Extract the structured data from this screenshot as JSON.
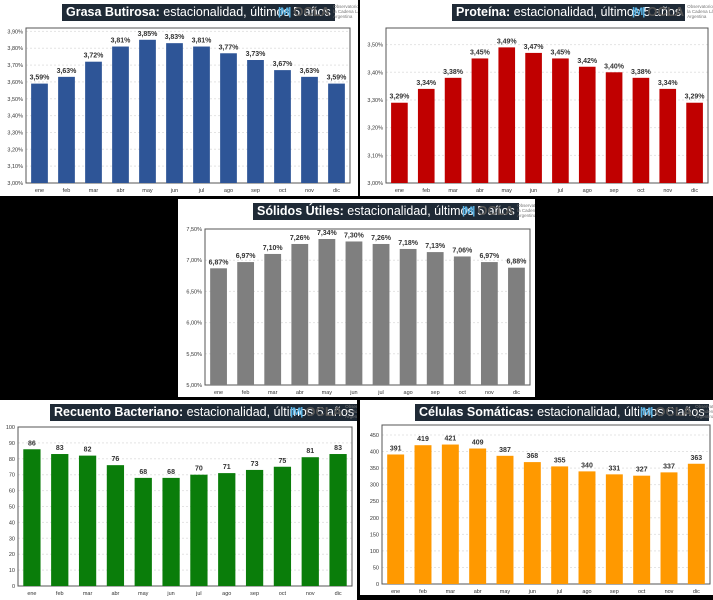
{
  "logo": {
    "word": "OCLA",
    "sub": "Observatorio de la Cadena Láctea Argentina"
  },
  "chart_data": [
    {
      "type": "bar",
      "title_bold": "Grasa Butirosa:",
      "title_rest": " estacionalidad, últimos 5 años",
      "color": "#2e5597",
      "categories": [
        "ene",
        "feb",
        "mar",
        "abr",
        "may",
        "jun",
        "jul",
        "ago",
        "sep",
        "oct",
        "nov",
        "dic"
      ],
      "values": [
        3.59,
        3.63,
        3.72,
        3.81,
        3.85,
        3.83,
        3.81,
        3.77,
        3.73,
        3.67,
        3.63,
        3.59
      ],
      "value_labels": [
        "3,59%",
        "3,63%",
        "3,72%",
        "3,81%",
        "3,85%",
        "3,83%",
        "3,81%",
        "3,77%",
        "3,73%",
        "3,67%",
        "3,63%",
        "3,59%"
      ],
      "ylim": [
        3.0,
        3.92
      ],
      "yticks": [
        3.0,
        3.1,
        3.2,
        3.3,
        3.4,
        3.5,
        3.6,
        3.7,
        3.8,
        3.9
      ],
      "ytick_labels": [
        "3,00%",
        "3,10%",
        "3,20%",
        "3,30%",
        "3,40%",
        "3,50%",
        "3,60%",
        "3,70%",
        "3,80%",
        "3,90%"
      ],
      "grid": true,
      "legend": "none"
    },
    {
      "type": "bar",
      "title_bold": "Proteína:",
      "title_rest": " estacionalidad, últimos 5 años",
      "color": "#c00000",
      "categories": [
        "ene",
        "feb",
        "mar",
        "abr",
        "may",
        "jun",
        "jul",
        "ago",
        "sep",
        "oct",
        "nov",
        "dic"
      ],
      "values": [
        3.29,
        3.34,
        3.38,
        3.45,
        3.49,
        3.47,
        3.45,
        3.42,
        3.4,
        3.38,
        3.34,
        3.29
      ],
      "value_labels": [
        "3,29%",
        "3,34%",
        "3,38%",
        "3,45%",
        "3,49%",
        "3,47%",
        "3,45%",
        "3,42%",
        "3,40%",
        "3,38%",
        "3,34%",
        "3,29%"
      ],
      "ylim": [
        3.0,
        3.56
      ],
      "yticks": [
        3.0,
        3.1,
        3.2,
        3.3,
        3.4,
        3.5
      ],
      "ytick_labels": [
        "3,00%",
        "3,10%",
        "3,20%",
        "3,30%",
        "3,40%",
        "3,50%"
      ],
      "grid": true,
      "legend": "none"
    },
    {
      "type": "bar",
      "title_bold": "Sólidos Útiles:",
      "title_rest": " estacionalidad, últimos 5 años",
      "color": "#7f7f7f",
      "categories": [
        "ene",
        "feb",
        "mar",
        "abr",
        "may",
        "jun",
        "jul",
        "ago",
        "sep",
        "oct",
        "nov",
        "dic"
      ],
      "values": [
        6.87,
        6.97,
        7.1,
        7.26,
        7.34,
        7.3,
        7.26,
        7.18,
        7.13,
        7.06,
        6.97,
        6.88
      ],
      "value_labels": [
        "6,87%",
        "6,97%",
        "7,10%",
        "7,26%",
        "7,34%",
        "7,30%",
        "7,26%",
        "7,18%",
        "7,13%",
        "7,06%",
        "6,97%",
        "6,88%"
      ],
      "ylim": [
        5.0,
        7.5
      ],
      "yticks": [
        5.0,
        5.5,
        6.0,
        6.5,
        7.0,
        7.5
      ],
      "ytick_labels": [
        "5,00%",
        "5,50%",
        "6,00%",
        "6,50%",
        "7,00%",
        "7,50%"
      ],
      "grid": true,
      "legend": "none"
    },
    {
      "type": "bar",
      "title_bold": "Recuento Bacteriano:",
      "title_rest": " estacionalidad, últimos 5 años",
      "color": "#0a7d0a",
      "categories": [
        "ene",
        "feb",
        "mar",
        "abr",
        "may",
        "jun",
        "jul",
        "ago",
        "sep",
        "oct",
        "nov",
        "dic"
      ],
      "values": [
        86,
        83,
        82,
        76,
        68,
        68,
        70,
        71,
        73,
        75,
        81,
        83
      ],
      "value_labels": [
        "86",
        "83",
        "82",
        "76",
        "68",
        "68",
        "70",
        "71",
        "73",
        "75",
        "81",
        "83"
      ],
      "ylim": [
        0,
        100
      ],
      "yticks": [
        0,
        10,
        20,
        30,
        40,
        50,
        60,
        70,
        80,
        90,
        100
      ],
      "ytick_labels": [
        "0",
        "10",
        "20",
        "30",
        "40",
        "50",
        "60",
        "70",
        "80",
        "90",
        "100"
      ],
      "grid": true,
      "legend": "none"
    },
    {
      "type": "bar",
      "title_bold": "Células Somáticas:",
      "title_rest": " estacionalidad, últimos 5 años",
      "color": "#ff9900",
      "categories": [
        "ene",
        "feb",
        "mar",
        "abr",
        "may",
        "jun",
        "jul",
        "ago",
        "sep",
        "oct",
        "nov",
        "dic"
      ],
      "values": [
        391,
        419,
        421,
        409,
        387,
        368,
        355,
        340,
        331,
        327,
        337,
        363
      ],
      "value_labels": [
        "391",
        "419",
        "421",
        "409",
        "387",
        "368",
        "355",
        "340",
        "331",
        "327",
        "337",
        "363"
      ],
      "ylim": [
        0,
        480
      ],
      "yticks": [
        0,
        50,
        100,
        150,
        200,
        250,
        300,
        350,
        400,
        450
      ],
      "ytick_labels": [
        "0",
        "50",
        "100",
        "150",
        "200",
        "250",
        "300",
        "350",
        "400",
        "450"
      ],
      "grid": true,
      "legend": "none"
    }
  ]
}
